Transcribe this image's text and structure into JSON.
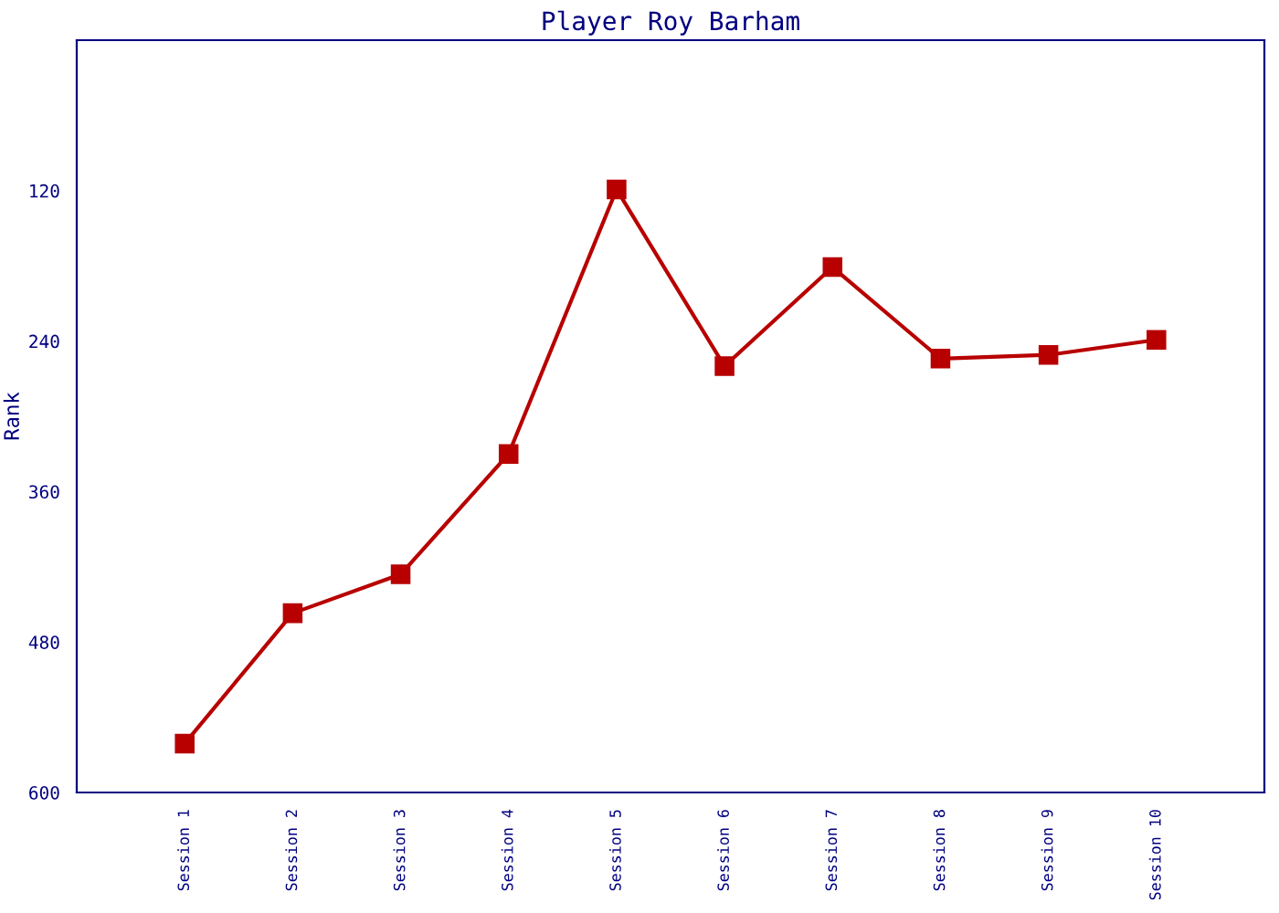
{
  "chart_data": {
    "type": "line",
    "title": "Player Roy Barham",
    "ylabel": "Rank",
    "categories": [
      "Session 1",
      "Session 2",
      "Session 3",
      "Session 4",
      "Session 5",
      "Session 6",
      "Session 7",
      "Session 8",
      "Session 9",
      "Session 10"
    ],
    "series": [
      {
        "color": "#b80000",
        "values": [
          561,
          457,
          426,
          330,
          119,
          260,
          181,
          254,
          251,
          239
        ]
      }
    ],
    "ylim": [
      600,
      0
    ],
    "yticks": [
      120,
      240,
      360,
      480,
      600
    ],
    "marker": "square",
    "line_style": "solid",
    "grid": false,
    "legend": false
  }
}
